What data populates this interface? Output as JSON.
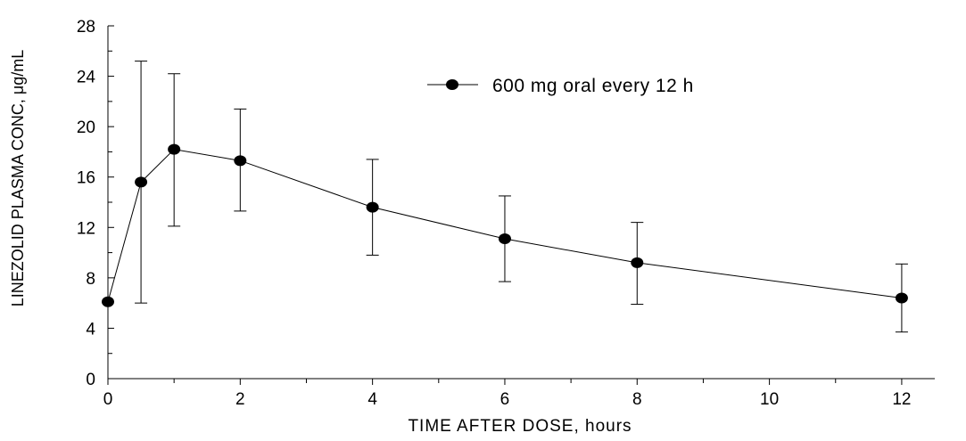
{
  "chart_data": {
    "type": "line",
    "xlabel": "TIME AFTER DOSE, hours",
    "ylabel": "LINEZOLID PLASMA CONC, μg/mL",
    "xlim": [
      0,
      12.5
    ],
    "ylim": [
      0,
      28
    ],
    "x_ticks": [
      0,
      2,
      4,
      6,
      8,
      10,
      12
    ],
    "x_minor_ticks": [
      1,
      3,
      5,
      7,
      9,
      11
    ],
    "y_ticks": [
      0,
      4,
      8,
      12,
      16,
      20,
      24,
      28
    ],
    "y_minor_ticks": [
      2,
      6,
      10,
      14,
      18,
      22,
      26
    ],
    "grid": false,
    "legend_position": "top-right",
    "series": [
      {
        "name": "600 mg oral every 12 h",
        "marker": "filled-circle",
        "color": "#000000",
        "x": [
          0,
          0.5,
          1,
          2,
          4,
          6,
          8,
          12
        ],
        "y": [
          6.1,
          15.6,
          18.2,
          17.3,
          13.6,
          11.1,
          9.2,
          6.4
        ],
        "error_upper": [
          6.1,
          25.2,
          24.2,
          21.4,
          17.4,
          14.5,
          12.4,
          9.1
        ],
        "error_lower": [
          6.1,
          6.0,
          12.1,
          13.3,
          9.8,
          7.7,
          5.9,
          3.7
        ]
      }
    ]
  }
}
